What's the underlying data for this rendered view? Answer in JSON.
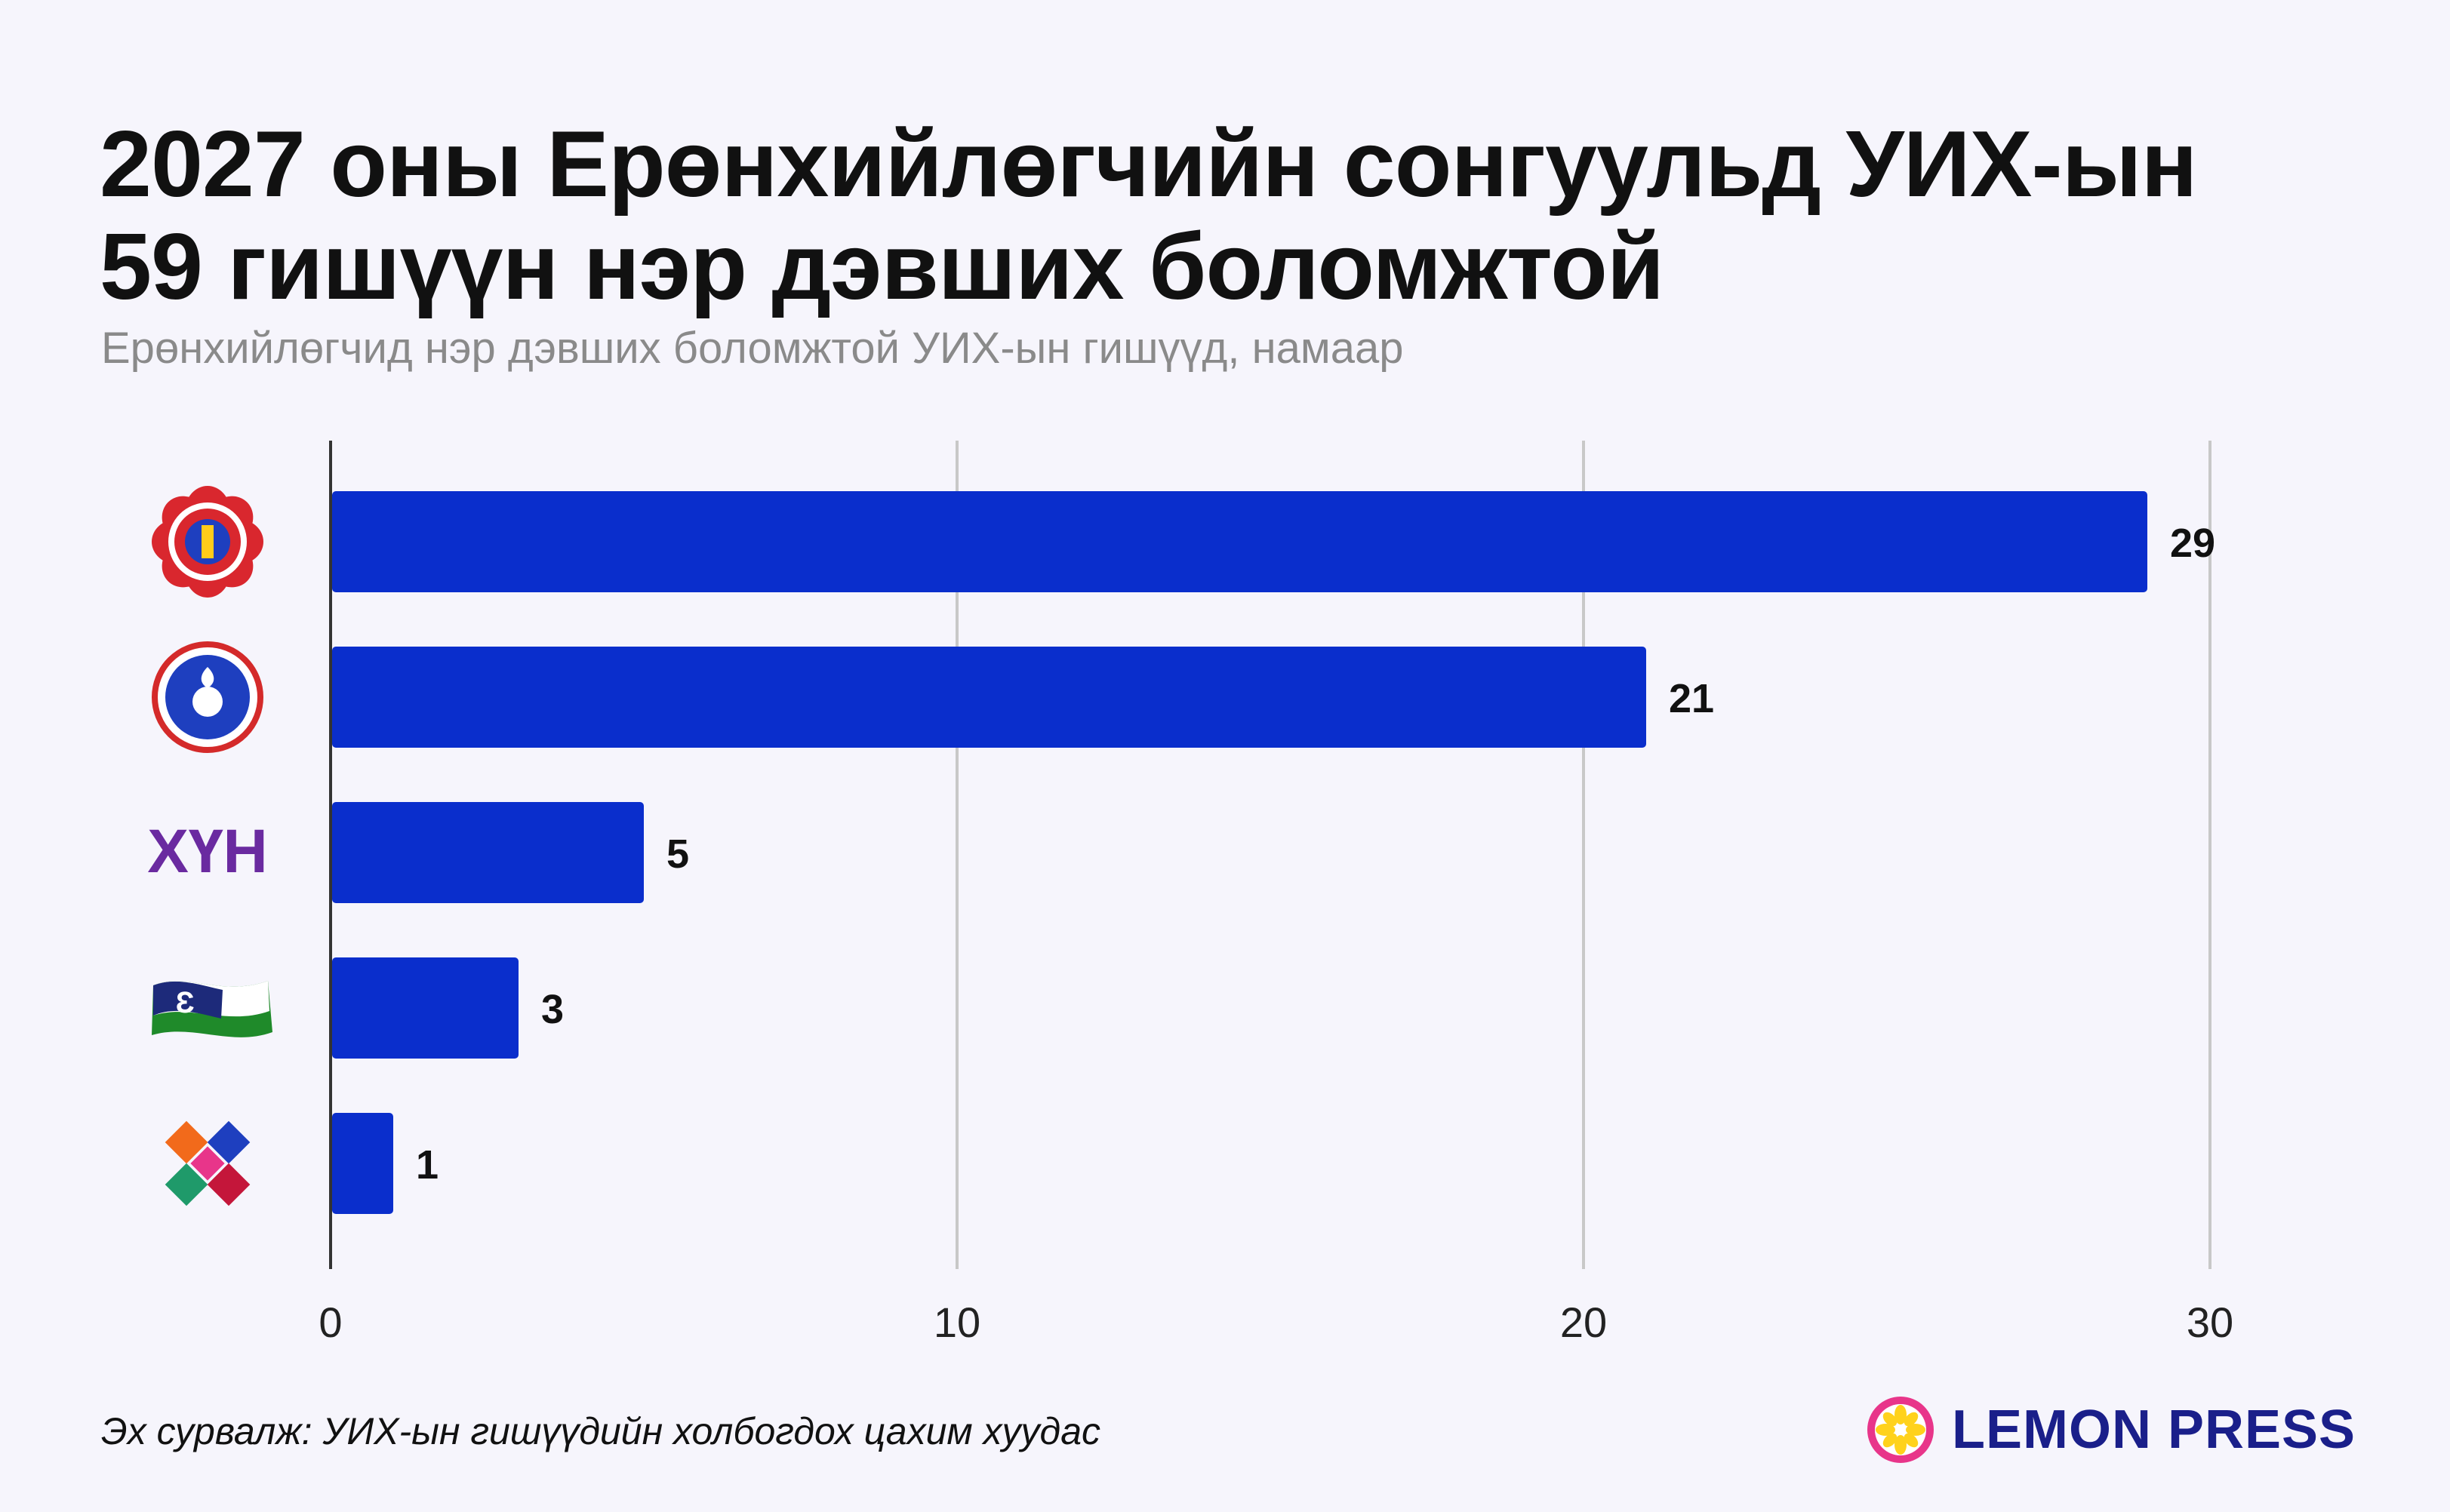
{
  "title_lines": [
    "2027 оны Ерөнхийлөгчийн сонгуульд УИХ-ын",
    "59 гишүүн нэр дэвших боломжтой"
  ],
  "subtitle": "Ерөнхийлөгчид нэр дэвших боломжтой УИХ-ын гишүүд, намаар",
  "source": "Эх сурвалж: УИХ-ын гишүүдийн холбогдох цахим хуудас",
  "brand": "LEMON PRESS",
  "colors": {
    "bar": "#0a2ecc",
    "grid": "#c8c8c8",
    "axis": "#333333",
    "background": "#f6f5fc",
    "brand": "#1a1f8a"
  },
  "chart_data": {
    "type": "bar",
    "orientation": "horizontal",
    "categories": [
      {
        "label": "",
        "logo": "mpp-emblem-icon"
      },
      {
        "label": "",
        "logo": "democratic-party-emblem-icon"
      },
      {
        "label": "ХҮН",
        "logo": "hun-party-wordmark"
      },
      {
        "label": "",
        "logo": "civil-will-green-party-flag-icon"
      },
      {
        "label": "",
        "logo": "national-coalition-emblem-icon"
      }
    ],
    "values": [
      29,
      21,
      5,
      3,
      1
    ],
    "value_labels": [
      "29",
      "21",
      "5",
      "3",
      "1"
    ],
    "xlim": [
      0,
      30
    ],
    "xticks": [
      0,
      10,
      20,
      30
    ],
    "xtick_labels": [
      "0",
      "10",
      "20",
      "30"
    ],
    "grid": true,
    "xlabel": "",
    "ylabel": ""
  }
}
